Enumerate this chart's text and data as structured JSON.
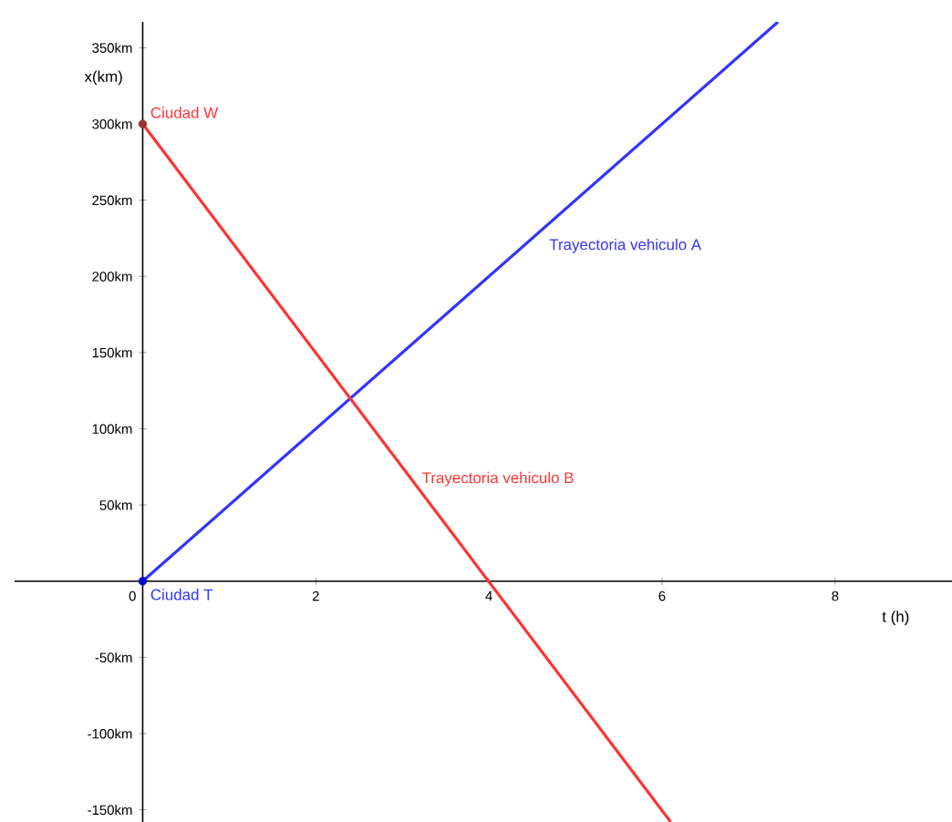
{
  "chart_data": {
    "type": "line",
    "xlabel": "t (h)",
    "ylabel": "x(km)",
    "xlim": [
      -1.48,
      9.35
    ],
    "ylim": [
      -158,
      367
    ],
    "xticks": [
      {
        "value": 0,
        "label": "0"
      },
      2,
      4,
      6,
      8
    ],
    "yticks": [
      {
        "value": -150,
        "label": "-150km"
      },
      {
        "value": -100,
        "label": "-100km"
      },
      {
        "value": -50,
        "label": "-50km"
      },
      {
        "value": 50,
        "label": "50km"
      },
      {
        "value": 100,
        "label": "100km"
      },
      {
        "value": 150,
        "label": "150km"
      },
      {
        "value": 200,
        "label": "200km"
      },
      {
        "value": 250,
        "label": "250km"
      },
      {
        "value": 300,
        "label": "300km"
      },
      {
        "value": 350,
        "label": "350km"
      }
    ],
    "grid": false,
    "series": [
      {
        "color": "#3333ff",
        "x": [
          0,
          7.34
        ],
        "values": [
          0,
          367
        ]
      },
      {
        "color": "#ff3333",
        "x": [
          0,
          6.1
        ],
        "values": [
          300,
          -158
        ]
      },
      {
        "type": "scatter",
        "color": "#0000cc",
        "x": [
          0
        ],
        "values": [
          0
        ]
      },
      {
        "type": "scatter",
        "color": "#993333",
        "x": [
          0
        ],
        "values": [
          300
        ]
      }
    ],
    "annotations": [
      "Ciudad W",
      "Ciudad T",
      "Trayectoria vehiculo A",
      {
        "text": "Trayectoria vehiculo B",
        "x": 3.2,
        "y": 67
      }
    ]
  }
}
